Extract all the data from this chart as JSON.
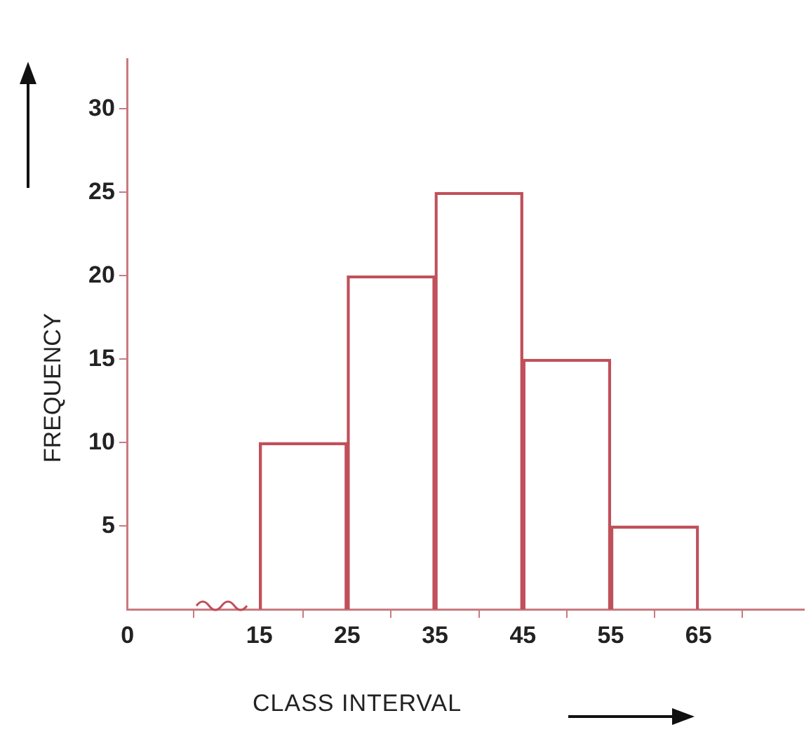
{
  "chart_data": {
    "type": "histogram",
    "xlabel": "CLASS INTERVAL",
    "ylabel": "FREQUENCY",
    "bins": [
      15,
      25,
      35,
      45,
      55,
      65
    ],
    "values": [
      10,
      20,
      25,
      15,
      5
    ],
    "color": "#c0505a",
    "xlim": [
      0,
      77
    ],
    "xticks": [
      0,
      15,
      25,
      35,
      45,
      55,
      65
    ],
    "ylim": [
      0,
      33
    ],
    "yticks": [
      5,
      10,
      15,
      20,
      25,
      30
    ],
    "grid": false,
    "legend": false
  }
}
